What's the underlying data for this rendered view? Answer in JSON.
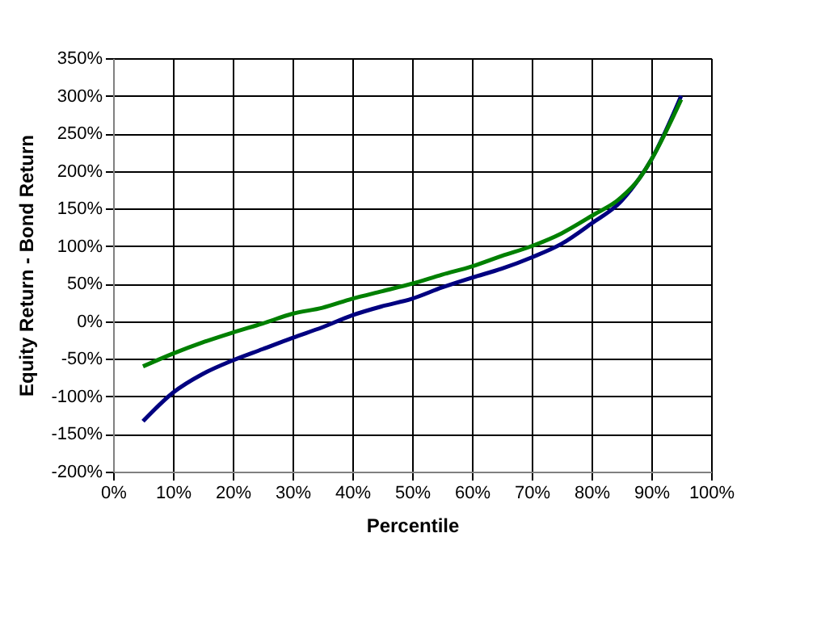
{
  "chart_data": {
    "type": "line",
    "xlabel": "Percentile",
    "ylabel": "Equity Return - Bond Return",
    "x": [
      5,
      10,
      15,
      20,
      25,
      30,
      35,
      40,
      45,
      50,
      55,
      60,
      65,
      70,
      75,
      80,
      85,
      88,
      90,
      95
    ],
    "series": [
      {
        "color": "#000080",
        "values": [
          -133,
          -95,
          -70,
          -52,
          -37,
          -22,
          -8,
          8,
          20,
          30,
          45,
          58,
          70,
          85,
          103,
          130,
          160,
          190,
          215,
          300
        ]
      },
      {
        "color": "#008000",
        "values": [
          -60,
          -43,
          -28,
          -15,
          -3,
          10,
          18,
          30,
          40,
          50,
          62,
          73,
          87,
          100,
          117,
          140,
          165,
          190,
          215,
          295
        ]
      }
    ],
    "xlim": [
      0,
      100
    ],
    "xticks": [
      {
        "value": 0,
        "label": "0%"
      },
      {
        "value": 10,
        "label": "10%"
      },
      {
        "value": 20,
        "label": "20%"
      },
      {
        "value": 30,
        "label": "30%"
      },
      {
        "value": 40,
        "label": "40%"
      },
      {
        "value": 50,
        "label": "50%"
      },
      {
        "value": 60,
        "label": "60%"
      },
      {
        "value": 70,
        "label": "70%"
      },
      {
        "value": 80,
        "label": "80%"
      },
      {
        "value": 90,
        "label": "90%"
      },
      {
        "value": 100,
        "label": "100%"
      }
    ],
    "ylim": [
      -200,
      350
    ],
    "yticks": [
      {
        "value": -200,
        "label": "-200%"
      },
      {
        "value": -150,
        "label": "-150%"
      },
      {
        "value": -100,
        "label": "-100%"
      },
      {
        "value": -50,
        "label": "-50%"
      },
      {
        "value": 0,
        "label": "0%"
      },
      {
        "value": 50,
        "label": "50%"
      },
      {
        "value": 100,
        "label": "100%"
      },
      {
        "value": 150,
        "label": "150%"
      },
      {
        "value": 200,
        "label": "200%"
      },
      {
        "value": 250,
        "label": "250%"
      },
      {
        "value": 300,
        "label": "300%"
      },
      {
        "value": 350,
        "label": "350%"
      }
    ],
    "grid": true,
    "legend": false,
    "marker": "none",
    "line_style": "solid"
  }
}
